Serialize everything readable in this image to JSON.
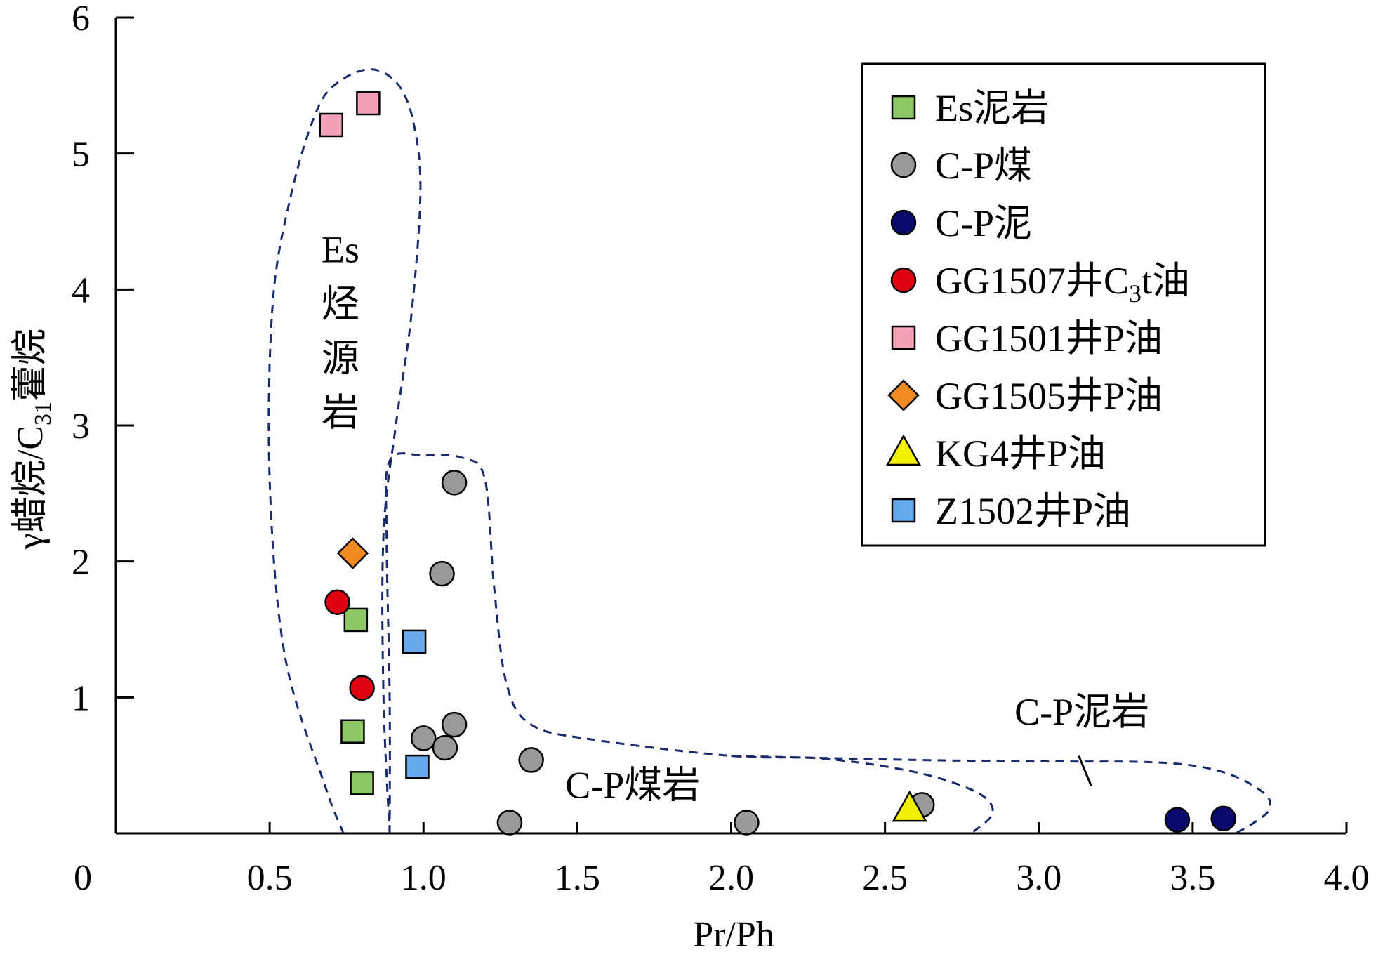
{
  "chart_data": {
    "type": "scatter",
    "xlabel": "Pr/Ph",
    "ylabel": {
      "base": "γ蜡烷/C",
      "sub": "31",
      "rest": "藿烷"
    },
    "xlim": [
      0,
      4.0
    ],
    "ylim": [
      0,
      6
    ],
    "x_ticks": [
      {
        "value": 0,
        "label": "0"
      },
      {
        "value": 0.5,
        "label": "0.5"
      },
      {
        "value": 1.0,
        "label": "1.0"
      },
      {
        "value": 1.5,
        "label": "1.5"
      },
      {
        "value": 2.0,
        "label": "2.0"
      },
      {
        "value": 2.5,
        "label": "2.5"
      },
      {
        "value": 3.0,
        "label": "3.0"
      },
      {
        "value": 3.5,
        "label": "3.5"
      },
      {
        "value": 4.0,
        "label": "4.0"
      }
    ],
    "y_ticks": [
      {
        "value": 1,
        "label": "1"
      },
      {
        "value": 2,
        "label": "2"
      },
      {
        "value": 3,
        "label": "3"
      },
      {
        "value": 4,
        "label": "4"
      },
      {
        "value": 5,
        "label": "5"
      },
      {
        "value": 6,
        "label": "6"
      }
    ],
    "grid": false,
    "legend_position": "top-right",
    "series": [
      {
        "name": "Es泥岩",
        "marker": "square",
        "color": "#8cc865",
        "points": [
          [
            0.78,
            1.57
          ],
          [
            0.77,
            0.75
          ],
          [
            0.8,
            0.37
          ]
        ]
      },
      {
        "name": "C-P煤",
        "marker": "circle",
        "color": "#999999",
        "points": [
          [
            1.1,
            2.58
          ],
          [
            1.06,
            1.91
          ],
          [
            1.1,
            0.8
          ],
          [
            1.0,
            0.7
          ],
          [
            1.07,
            0.63
          ],
          [
            1.35,
            0.54
          ],
          [
            1.28,
            0.08
          ],
          [
            2.05,
            0.08
          ],
          [
            2.62,
            0.21
          ]
        ]
      },
      {
        "name": "C-P泥",
        "marker": "circle",
        "color": "#0a0a6e",
        "points": [
          [
            3.45,
            0.1
          ],
          [
            3.6,
            0.11
          ]
        ]
      },
      {
        "name": "GG1507井C₃t油",
        "label_parts": [
          "GG1507井C",
          "3",
          "t油"
        ],
        "marker": "circle",
        "color": "#e00010",
        "points": [
          [
            0.72,
            1.7
          ],
          [
            0.8,
            1.07
          ]
        ]
      },
      {
        "name": "GG1501井P油",
        "marker": "square",
        "color": "#f4a0b8",
        "points": [
          [
            0.7,
            5.21
          ],
          [
            0.82,
            5.37
          ]
        ]
      },
      {
        "name": "GG1505井P油",
        "marker": "diamond",
        "color": "#f08a1e",
        "points": [
          [
            0.77,
            2.06
          ]
        ]
      },
      {
        "name": "KG4井P油",
        "marker": "triangle",
        "color": "#f5f000",
        "points": [
          [
            2.58,
            0.18
          ]
        ]
      },
      {
        "name": "Z1502井P油",
        "marker": "square",
        "color": "#66aaee",
        "points": [
          [
            0.97,
            1.41
          ],
          [
            0.98,
            0.49
          ]
        ]
      }
    ],
    "annotations": [
      {
        "text": "Es",
        "x": 0.73,
        "y": 4.2
      },
      {
        "text": "烃",
        "x": 0.73,
        "y": 3.8
      },
      {
        "text": "源",
        "x": 0.73,
        "y": 3.4
      },
      {
        "text": "岩",
        "x": 0.73,
        "y": 3.0
      },
      {
        "text": "C-P煤岩",
        "x": 1.68,
        "y": 0.26
      },
      {
        "text": "C-P泥岩",
        "x": 3.14,
        "y": 0.8
      }
    ],
    "regions": [
      {
        "name": "Es烃源岩",
        "points": [
          [
            0.74,
            0
          ],
          [
            0.68,
            0.35
          ],
          [
            0.55,
            1.3
          ],
          [
            0.5,
            2.6
          ],
          [
            0.51,
            3.9
          ],
          [
            0.57,
            4.7
          ],
          [
            0.65,
            5.3
          ],
          [
            0.72,
            5.52
          ],
          [
            0.83,
            5.62
          ],
          [
            0.92,
            5.5
          ],
          [
            0.97,
            5.2
          ],
          [
            0.99,
            4.7
          ],
          [
            0.96,
            3.8
          ],
          [
            0.91,
            3.0
          ],
          [
            0.87,
            2.2
          ],
          [
            0.87,
            1.0
          ],
          [
            0.89,
            0
          ]
        ]
      },
      {
        "name": "C-P煤岩",
        "points": [
          [
            0.89,
            0
          ],
          [
            0.89,
            1.0
          ],
          [
            0.88,
            2.2
          ],
          [
            0.89,
            2.74
          ],
          [
            1.0,
            2.78
          ],
          [
            1.13,
            2.76
          ],
          [
            1.2,
            2.6
          ],
          [
            1.23,
            1.8
          ],
          [
            1.27,
            1.1
          ],
          [
            1.35,
            0.8
          ],
          [
            1.55,
            0.69
          ],
          [
            2.0,
            0.57
          ],
          [
            2.3,
            0.55
          ],
          [
            2.6,
            0.45
          ],
          [
            2.8,
            0.3
          ],
          [
            2.85,
            0.15
          ],
          [
            2.78,
            0
          ]
        ]
      },
      {
        "name": "C-P泥岩",
        "points": [
          [
            2.0,
            0.57
          ],
          [
            2.6,
            0.54
          ],
          [
            3.0,
            0.53
          ],
          [
            3.4,
            0.52
          ],
          [
            3.6,
            0.45
          ],
          [
            3.73,
            0.3
          ],
          [
            3.75,
            0.18
          ],
          [
            3.7,
            0.08
          ],
          [
            3.64,
            0
          ]
        ]
      }
    ],
    "divider": [
      [
        3.13,
        0.57
      ],
      [
        3.17,
        0.35
      ]
    ]
  }
}
